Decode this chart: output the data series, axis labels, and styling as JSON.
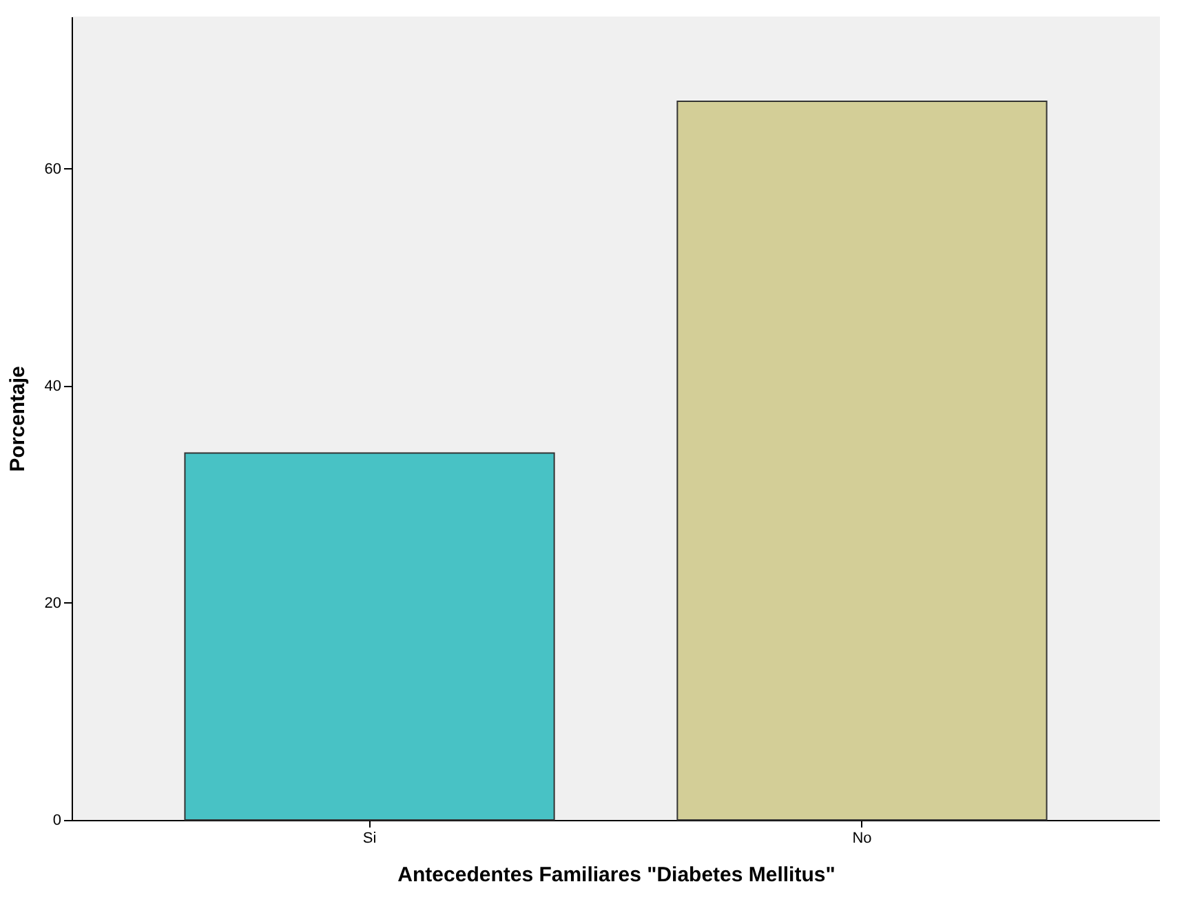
{
  "chart_data": {
    "type": "bar",
    "xlabel": "Antecedentes Familiares \"Diabetes Mellitus\"",
    "ylabel": "Porcentaje",
    "categories": [
      "Si",
      "No"
    ],
    "values": [
      33.8,
      66.2
    ],
    "colors": [
      "#48c2c5",
      "#d3ce97"
    ],
    "ylim": [
      0,
      74
    ],
    "yticks": [
      0,
      20,
      40,
      60
    ],
    "grid": false
  }
}
